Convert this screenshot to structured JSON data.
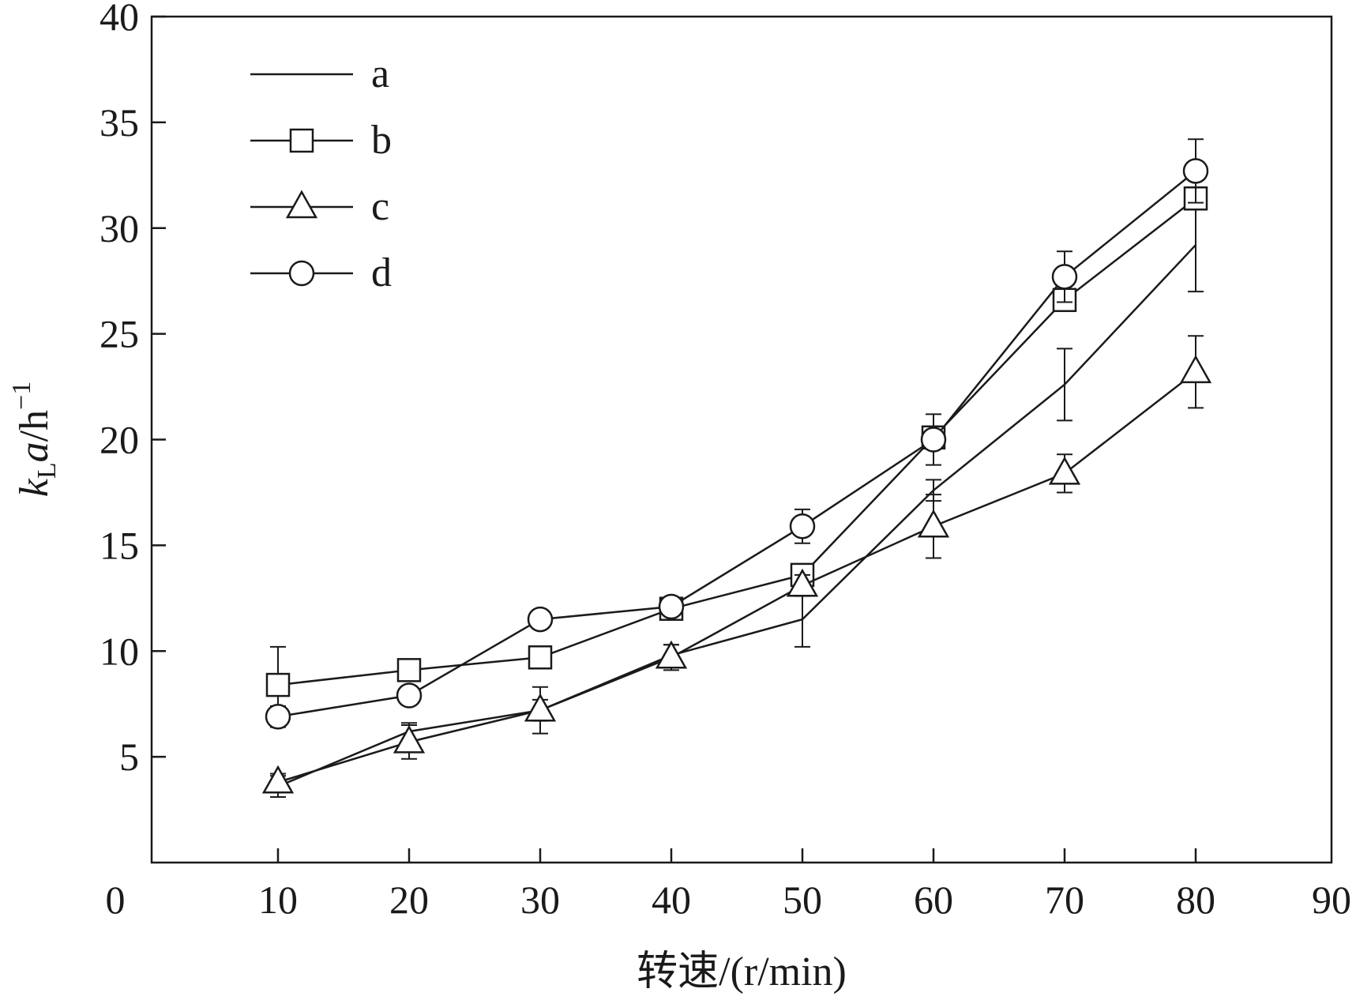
{
  "chart_data": {
    "type": "line",
    "title": "",
    "xlabel": "转速/(r/min)",
    "ylabel_parts": {
      "k": "k",
      "sub": "L",
      "a": "a",
      "unit": "/h",
      "sup": "−1"
    },
    "xlim": [
      0,
      90
    ],
    "ylim": [
      0,
      40
    ],
    "x_ticks": [
      "0",
      "10",
      "20",
      "30",
      "40",
      "50",
      "60",
      "70",
      "80",
      "90"
    ],
    "y_ticks": [
      "5",
      "10",
      "15",
      "20",
      "25",
      "30",
      "35",
      "40"
    ],
    "grid": false,
    "legend_position": "top-left",
    "x": [
      10,
      20,
      30,
      40,
      50,
      60,
      70,
      80
    ],
    "series": [
      {
        "name": "a",
        "marker": "none",
        "values": [
          3.6,
          6.2,
          7.2,
          9.8,
          11.5,
          17.6,
          22.6,
          29.2
        ],
        "errors": [
          0.5,
          0.4,
          0.5,
          0.5,
          1.3,
          0.5,
          1.7,
          2.2
        ]
      },
      {
        "name": "b",
        "marker": "square",
        "values": [
          8.4,
          9.1,
          9.7,
          12.0,
          13.6,
          20.1,
          26.6,
          31.4
        ],
        "errors": [
          1.8,
          0.3,
          0.3,
          0.3,
          0.4,
          0.4,
          0.3,
          0.3
        ]
      },
      {
        "name": "c",
        "marker": "triangle",
        "values": [
          3.8,
          5.7,
          7.2,
          9.7,
          13.1,
          15.9,
          18.4,
          23.2
        ],
        "errors": [
          0.4,
          0.8,
          1.1,
          0.6,
          0.5,
          1.5,
          0.9,
          1.7
        ]
      },
      {
        "name": "d",
        "marker": "circle",
        "values": [
          6.9,
          7.9,
          11.5,
          12.1,
          15.9,
          20.0,
          27.7,
          32.7
        ],
        "errors": [
          0.5,
          0.3,
          0.3,
          0.3,
          0.8,
          1.2,
          1.2,
          1.5
        ]
      }
    ]
  }
}
